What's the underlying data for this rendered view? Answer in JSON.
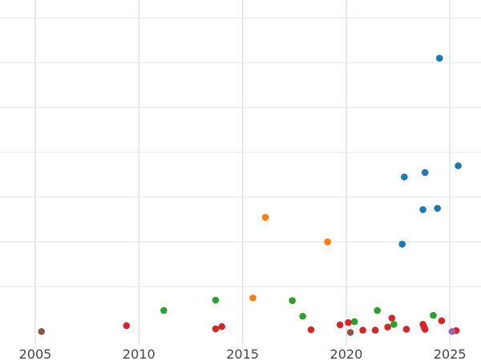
{
  "chart_data": {
    "type": "scatter",
    "title": "",
    "xlabel": "",
    "ylabel": "",
    "xlim": [
      2003.3,
      2026.5
    ],
    "ylim": [
      -0.3,
      7.4
    ],
    "x_ticks": [
      2005,
      2010,
      2015,
      2020,
      2025
    ],
    "x_tick_labels": [
      "2005",
      "2010",
      "2015",
      "2020",
      "2025"
    ],
    "y_grid": [
      1,
      2,
      3,
      4,
      5,
      6,
      7
    ],
    "grid": true,
    "legend": "none",
    "series": [
      {
        "color": "#1f77b4",
        "points": [
          {
            "x": 2024.5,
            "y": 6.1
          },
          {
            "x": 2025.4,
            "y": 3.7
          },
          {
            "x": 2023.8,
            "y": 3.55
          },
          {
            "x": 2022.8,
            "y": 3.45
          },
          {
            "x": 2023.7,
            "y": 2.72
          },
          {
            "x": 2024.4,
            "y": 2.75
          },
          {
            "x": 2022.7,
            "y": 1.95
          }
        ]
      },
      {
        "color": "#ff7f0e",
        "points": [
          {
            "x": 2016.1,
            "y": 2.55
          },
          {
            "x": 2019.1,
            "y": 2.0
          },
          {
            "x": 2015.5,
            "y": 0.75
          }
        ]
      },
      {
        "color": "#2ca02c",
        "points": [
          {
            "x": 2011.2,
            "y": 0.47
          },
          {
            "x": 2013.7,
            "y": 0.7
          },
          {
            "x": 2017.4,
            "y": 0.69
          },
          {
            "x": 2017.9,
            "y": 0.34
          },
          {
            "x": 2020.4,
            "y": 0.22
          },
          {
            "x": 2021.5,
            "y": 0.47
          },
          {
            "x": 2022.3,
            "y": 0.16
          },
          {
            "x": 2024.2,
            "y": 0.36
          }
        ]
      },
      {
        "color": "#d62728",
        "points": [
          {
            "x": 2009.4,
            "y": 0.13
          },
          {
            "x": 2013.7,
            "y": 0.06
          },
          {
            "x": 2014.0,
            "y": 0.11
          },
          {
            "x": 2018.3,
            "y": 0.04
          },
          {
            "x": 2019.7,
            "y": 0.15
          },
          {
            "x": 2020.1,
            "y": 0.2
          },
          {
            "x": 2020.8,
            "y": 0.03
          },
          {
            "x": 2021.4,
            "y": 0.03
          },
          {
            "x": 2022.0,
            "y": 0.1
          },
          {
            "x": 2022.2,
            "y": 0.3
          },
          {
            "x": 2022.9,
            "y": 0.05
          },
          {
            "x": 2023.7,
            "y": 0.16
          },
          {
            "x": 2023.75,
            "y": 0.1
          },
          {
            "x": 2023.8,
            "y": 0.05
          },
          {
            "x": 2024.6,
            "y": 0.24
          },
          {
            "x": 2025.3,
            "y": 0.02
          }
        ]
      },
      {
        "color": "#8c564b",
        "points": [
          {
            "x": 2005.3,
            "y": 0.0
          },
          {
            "x": 2020.2,
            "y": -0.02
          }
        ]
      },
      {
        "color": "#9467bd",
        "points": [
          {
            "x": 2025.1,
            "y": 0.0
          }
        ]
      }
    ]
  }
}
